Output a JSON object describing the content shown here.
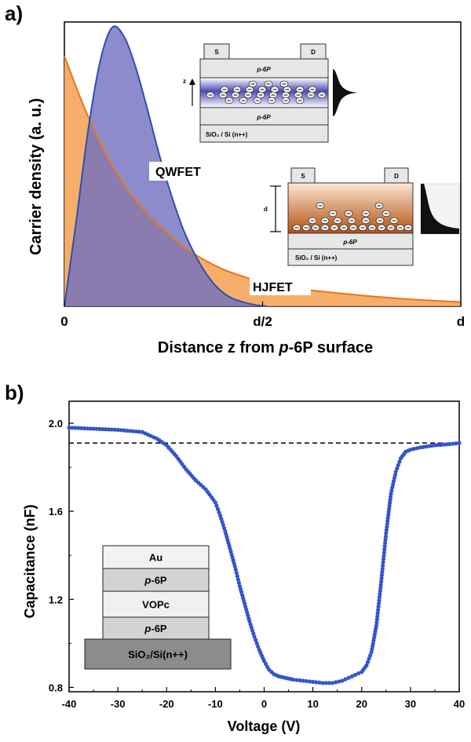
{
  "chart_data": [
    {
      "panel": "a)",
      "type": "area",
      "xlabel": "Distance z from p-6P surface",
      "xlabel_parts": [
        "Distance z from ",
        "p",
        "-6P surface"
      ],
      "ylabel": "Carrier density (a. u.)",
      "x_ticks": [
        "0",
        "d/2",
        "d"
      ],
      "xlim": [
        0,
        1
      ],
      "ylim": [
        0,
        1
      ],
      "series": [
        {
          "name": "QWFET",
          "color": "#7F7FC4",
          "stroke": "#2F4FB0",
          "x": [
            0,
            0.03,
            0.06,
            0.09,
            0.12,
            0.15,
            0.18,
            0.21,
            0.24,
            0.27,
            0.3,
            0.33,
            0.36,
            0.39,
            0.42,
            0.45,
            0.48,
            0.51
          ],
          "y": [
            0.0,
            0.3,
            0.62,
            0.86,
            0.98,
            0.95,
            0.84,
            0.69,
            0.53,
            0.39,
            0.27,
            0.18,
            0.11,
            0.06,
            0.03,
            0.015,
            0.005,
            0.0
          ]
        },
        {
          "name": "HJFET",
          "color": "#F5A55A",
          "stroke": "#E8771E",
          "x": [
            0,
            0.05,
            0.1,
            0.15,
            0.2,
            0.25,
            0.3,
            0.35,
            0.4,
            0.45,
            0.5,
            0.6,
            0.7,
            0.8,
            0.9,
            1.0
          ],
          "y": [
            0.88,
            0.7,
            0.55,
            0.43,
            0.34,
            0.27,
            0.21,
            0.165,
            0.13,
            0.105,
            0.085,
            0.06,
            0.045,
            0.032,
            0.022,
            0.015
          ]
        }
      ],
      "insets": {
        "qwfet": {
          "source": "S",
          "drain": "D",
          "top_layer": "p-6P",
          "bottom_layer": "p-6P",
          "substrate": "SiO₂ / Si (n++)",
          "axis": "z"
        },
        "hjfet": {
          "source": "S",
          "drain": "D",
          "layer": "p-6P",
          "substrate": "SiO₂ / Si (n++)",
          "thickness": "d"
        }
      }
    },
    {
      "panel": "b)",
      "type": "scatter",
      "xlabel": "Voltage (V)",
      "ylabel": "Capacitance (nF)",
      "xlim": [
        -40,
        40
      ],
      "ylim": [
        0.78,
        2.1
      ],
      "x_ticks": [
        -40,
        -30,
        -20,
        -10,
        0,
        10,
        20,
        30,
        40
      ],
      "y_ticks": [
        "0.8",
        "1.2",
        "1.6",
        "2.0"
      ],
      "reference_line": 1.91,
      "color": "#3355CC",
      "x": [
        -40,
        -35,
        -30,
        -25,
        -22,
        -20,
        -18,
        -16,
        -14,
        -12,
        -10,
        -9,
        -8,
        -7,
        -6,
        -5,
        -4,
        -3,
        -2,
        -1,
        0,
        1,
        2,
        3,
        4,
        5,
        6,
        8,
        10,
        12,
        14,
        16,
        18,
        20,
        21,
        22,
        23,
        24,
        25,
        26,
        27,
        28,
        29,
        30,
        32,
        35,
        38,
        40
      ],
      "y": [
        1.98,
        1.975,
        1.97,
        1.96,
        1.93,
        1.9,
        1.85,
        1.79,
        1.74,
        1.7,
        1.64,
        1.58,
        1.51,
        1.43,
        1.35,
        1.26,
        1.18,
        1.1,
        1.03,
        0.97,
        0.92,
        0.88,
        0.86,
        0.85,
        0.845,
        0.84,
        0.835,
        0.83,
        0.825,
        0.82,
        0.82,
        0.83,
        0.85,
        0.87,
        0.9,
        0.96,
        1.08,
        1.28,
        1.5,
        1.68,
        1.78,
        1.84,
        1.87,
        1.88,
        1.89,
        1.9,
        1.905,
        1.91
      ],
      "stack_layers": [
        {
          "name": "Au",
          "fill": "#F2F2F2"
        },
        {
          "name": "p-6P",
          "fill": "#D3D3D3"
        },
        {
          "name": "VOPc",
          "fill": "#F0F0F0"
        },
        {
          "name": "p-6P",
          "fill": "#D3D3D3"
        },
        {
          "name": "SiO₂/Si(n++)",
          "fill": "#8C8C8C"
        }
      ]
    }
  ]
}
